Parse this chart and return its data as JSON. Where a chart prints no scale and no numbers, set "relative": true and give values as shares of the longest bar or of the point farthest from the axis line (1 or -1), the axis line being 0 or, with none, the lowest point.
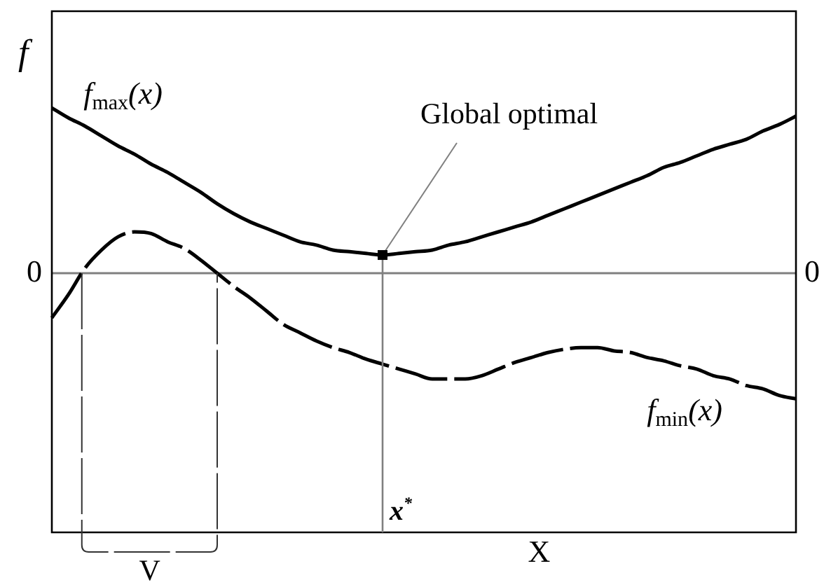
{
  "chart_data": {
    "type": "line",
    "relative": true,
    "xlabel": "X",
    "ylabel": "f",
    "categories": [
      null,
      null,
      null,
      null,
      null,
      null,
      null,
      null,
      null,
      null,
      null,
      null,
      null,
      null,
      null,
      null,
      null,
      null,
      null,
      null,
      null,
      null,
      null,
      null,
      null,
      null,
      null,
      null,
      null,
      null,
      null,
      null,
      null,
      null,
      null,
      null,
      null,
      null,
      null,
      null,
      null,
      null,
      null,
      null,
      null,
      null
    ],
    "series": [
      {
        "name": "f$_{max}$(x)",
        "color": "#000000",
        "values": [
          1.0,
          0.94,
          0.89,
          0.83,
          0.77,
          0.72,
          0.66,
          0.61,
          0.55,
          0.49,
          0.42,
          0.36,
          0.31,
          0.27,
          0.23,
          0.19,
          0.17,
          0.14,
          0.13,
          0.12,
          0.11,
          0.12,
          0.13,
          0.14,
          0.17,
          0.19,
          0.22,
          0.25,
          0.28,
          0.31,
          0.35,
          0.39,
          0.43,
          0.47,
          0.51,
          0.55,
          0.59,
          0.64,
          0.67,
          0.71,
          0.75,
          0.78,
          0.81,
          0.86,
          0.9,
          0.95
        ]
      },
      {
        "name": "f$_{min}$(x)",
        "color": "#000000",
        "line_style": "dashed",
        "values": [
          -0.27,
          -0.13,
          0.03,
          0.14,
          0.22,
          0.25,
          0.24,
          0.19,
          0.15,
          0.08,
          0,
          -0.08,
          -0.15,
          -0.23,
          -0.31,
          -0.36,
          -0.41,
          -0.45,
          -0.48,
          -0.52,
          -0.55,
          -0.58,
          -0.61,
          -0.64,
          -0.64,
          -0.64,
          -0.62,
          -0.58,
          -0.54,
          -0.51,
          -0.48,
          -0.46,
          -0.45,
          -0.45,
          -0.47,
          -0.48,
          -0.51,
          -0.53,
          -0.56,
          -0.58,
          -0.62,
          -0.64,
          -0.68,
          -0.7,
          -0.74,
          -0.76
        ]
      }
    ],
    "line_style": "solid",
    "marker": "none",
    "legend": false,
    "tick_labels": false,
    "ref_lines": [
      {
        "axis": "y",
        "value": 0,
        "label": "0",
        "color": "#808080"
      }
    ],
    "annotations": [
      "Global optimal",
      "x$^{*}$",
      "V"
    ]
  }
}
